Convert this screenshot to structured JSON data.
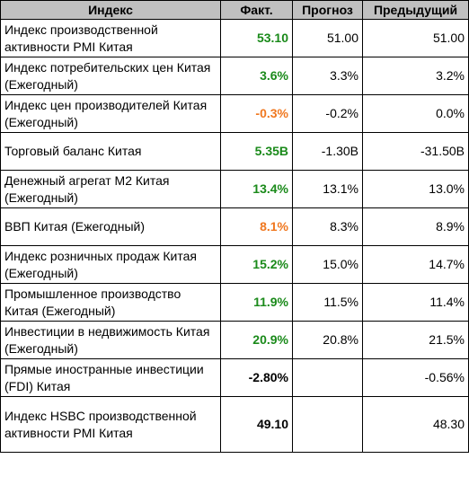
{
  "headers": [
    "Индекс",
    "Факт.",
    "Прогноз",
    "Предыдущий"
  ],
  "colors": {
    "green": "#1a8a1a",
    "orange": "#f07820",
    "black": "#000000",
    "header_bg": "#c0c0c0"
  },
  "rows": [
    {
      "name": "Индекс производственной активности PMI Китая",
      "actual": "53.10",
      "tone": "green",
      "forecast": "51.00",
      "previous": "51.00"
    },
    {
      "name": "Индекс потребительских цен Китая (Ежегодный)",
      "actual": "3.6%",
      "tone": "green",
      "forecast": "3.3%",
      "previous": "3.2%"
    },
    {
      "name": "Индекс цен производителей Китая (Ежегодный)",
      "actual": "-0.3%",
      "tone": "orange",
      "forecast": "-0.2%",
      "previous": "0.0%"
    },
    {
      "name": "Торговый баланс Китая",
      "actual": "5.35B",
      "tone": "green",
      "forecast": "-1.30B",
      "previous": "-31.50B"
    },
    {
      "name": "Денежный агрегат M2 Китая (Ежегодный)",
      "actual": "13.4%",
      "tone": "green",
      "forecast": "13.1%",
      "previous": "13.0%"
    },
    {
      "name": "ВВП Китая (Ежегодный)",
      "actual": "8.1%",
      "tone": "orange",
      "forecast": "8.3%",
      "previous": "8.9%"
    },
    {
      "name": "Индекс розничных продаж Китая (Ежегодный)",
      "actual": "15.2%",
      "tone": "green",
      "forecast": "15.0%",
      "previous": "14.7%"
    },
    {
      "name": "Промышленное производство Китая (Ежегодный)",
      "actual": "11.9%",
      "tone": "green",
      "forecast": "11.5%",
      "previous": "11.4%"
    },
    {
      "name": "Инвестиции в недвижимость Китая (Ежегодный)",
      "actual": "20.9%",
      "tone": "green",
      "forecast": "20.8%",
      "previous": "21.5%"
    },
    {
      "name": "Прямые иностранные инвестиции (FDI) Китая",
      "actual": "-2.80%",
      "tone": "black",
      "forecast": "",
      "previous": "-0.56%"
    },
    {
      "name": "Индекс HSBC производственной активности PMI Китая",
      "actual": "49.10",
      "tone": "black",
      "forecast": "",
      "previous": "48.30"
    }
  ]
}
